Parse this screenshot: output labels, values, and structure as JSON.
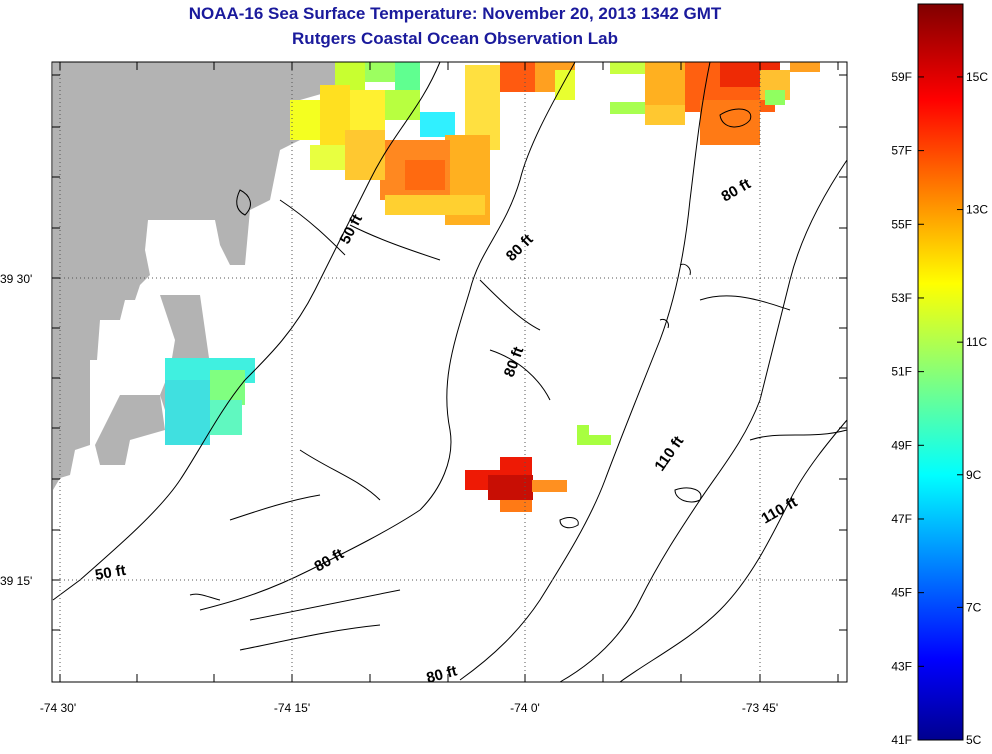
{
  "title": "NOAA-16 Sea Surface Temperature:  November 20, 2013 1342 GMT",
  "subtitle": "Rutgers Coastal Ocean Observation Lab",
  "map": {
    "x_ticks": [
      "-74 30'",
      "-74 15'",
      "-74 0'",
      "-73 45'"
    ],
    "y_ticks": [
      "39 30'",
      "39 15'"
    ],
    "contour_labels": [
      {
        "text": "50 ft",
        "rotate": -62
      },
      {
        "text": "80 ft",
        "rotate": -45
      },
      {
        "text": "80 ft",
        "rotate": -30
      },
      {
        "text": "80 ft",
        "rotate": -70
      },
      {
        "text": "110 ft",
        "rotate": -55
      },
      {
        "text": "110 ft",
        "rotate": -30
      },
      {
        "text": "80 ft",
        "rotate": -30
      },
      {
        "text": "50 ft",
        "rotate": -10
      },
      {
        "text": "80 ft",
        "rotate": -15
      }
    ],
    "land_color": "#b3b3b3"
  },
  "colorbar": {
    "fahrenheit": [
      "59F",
      "57F",
      "55F",
      "53F",
      "51F",
      "49F",
      "47F",
      "45F",
      "43F",
      "41F"
    ],
    "celsius": [
      "15C",
      "13C",
      "11C",
      "9C",
      "7C",
      "5C"
    ],
    "min_c": 5,
    "max_c": 16.1
  }
}
